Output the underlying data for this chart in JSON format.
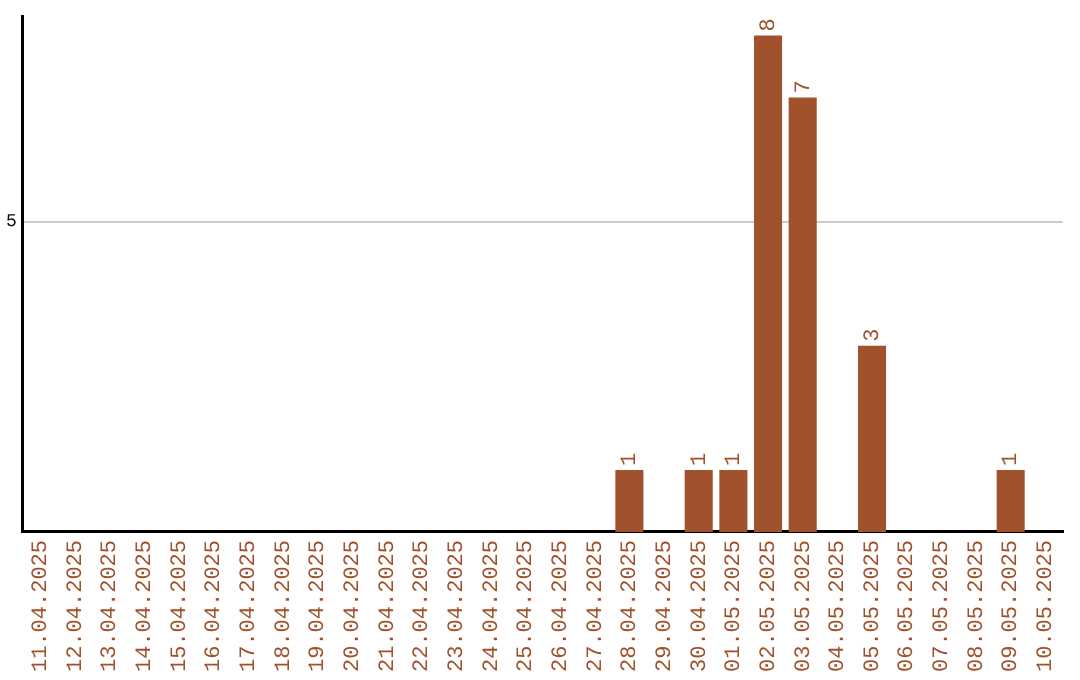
{
  "chart_data": {
    "type": "bar",
    "categories": [
      "11.04.2025",
      "12.04.2025",
      "13.04.2025",
      "14.04.2025",
      "15.04.2025",
      "16.04.2025",
      "17.04.2025",
      "18.04.2025",
      "19.04.2025",
      "20.04.2025",
      "21.04.2025",
      "22.04.2025",
      "23.04.2025",
      "24.04.2025",
      "25.04.2025",
      "26.04.2025",
      "27.04.2025",
      "28.04.2025",
      "29.04.2025",
      "30.04.2025",
      "01.05.2025",
      "02.05.2025",
      "03.05.2025",
      "04.05.2025",
      "05.05.2025",
      "06.05.2025",
      "07.05.2025",
      "08.05.2025",
      "09.05.2025",
      "10.05.2025"
    ],
    "values": [
      null,
      null,
      null,
      null,
      null,
      null,
      null,
      null,
      null,
      null,
      null,
      null,
      null,
      null,
      null,
      null,
      null,
      1,
      null,
      1,
      1,
      8,
      7,
      null,
      3,
      null,
      null,
      null,
      1,
      null
    ],
    "color": "#a0522d",
    "ylim": [
      0,
      8.3
    ],
    "yticks": [
      5
    ],
    "grid": "y",
    "legend": false,
    "data_labels": true
  }
}
